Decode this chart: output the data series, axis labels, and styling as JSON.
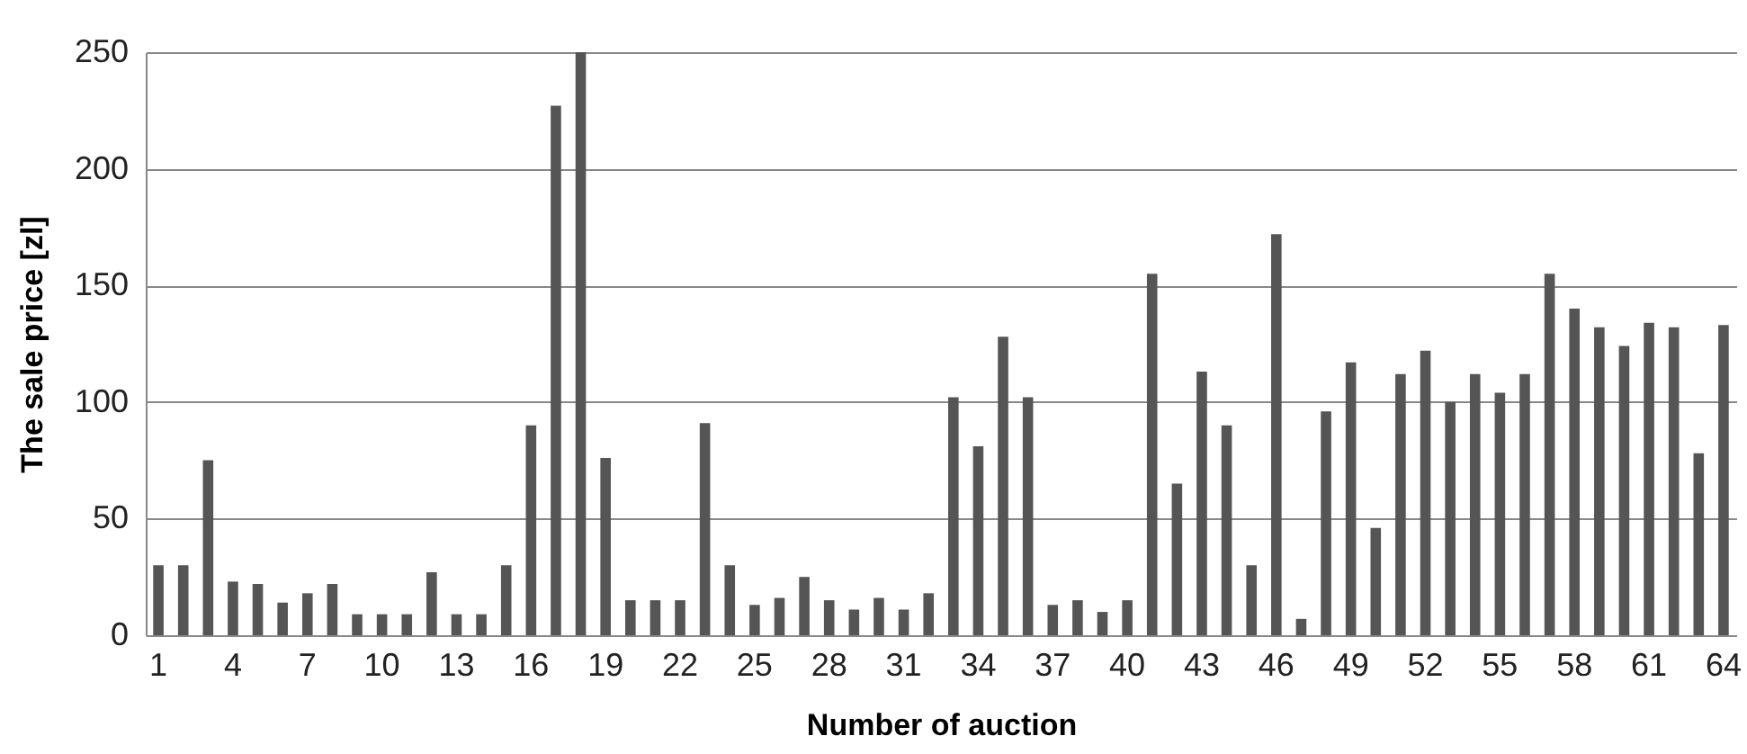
{
  "chart_data": {
    "type": "bar",
    "xlabel": "Number of auction",
    "ylabel": "The sale price [zl]",
    "categories": [
      "1",
      null,
      null,
      "4",
      null,
      null,
      "7",
      null,
      null,
      "10",
      null,
      null,
      "13",
      null,
      null,
      "16",
      null,
      null,
      "19",
      null,
      null,
      "22",
      null,
      null,
      "25",
      null,
      null,
      "28",
      null,
      null,
      "31",
      null,
      null,
      "34",
      null,
      null,
      "37",
      null,
      null,
      "40",
      null,
      null,
      "43",
      null,
      null,
      "46",
      null,
      null,
      "49",
      null,
      null,
      "52",
      null,
      null,
      "55",
      null,
      null,
      "58",
      null,
      null,
      "61",
      null,
      null,
      "64"
    ],
    "values": [
      30,
      30,
      75,
      23,
      22,
      14,
      18,
      22,
      9,
      9,
      9,
      27,
      9,
      9,
      30,
      90,
      227,
      250,
      76,
      15,
      15,
      15,
      91,
      30,
      13,
      16,
      25,
      15,
      11,
      16,
      11,
      18,
      102,
      81,
      128,
      102,
      13,
      15,
      10,
      15,
      155,
      65,
      113,
      90,
      30,
      172,
      7,
      96,
      117,
      46,
      112,
      122,
      100,
      112,
      104,
      112,
      155,
      140,
      132,
      124,
      134,
      132,
      78,
      133
    ],
    "color": "#555555",
    "ylim": [
      0,
      250
    ],
    "yticks": [
      0,
      50,
      100,
      150,
      200,
      250
    ],
    "grid": "y"
  }
}
